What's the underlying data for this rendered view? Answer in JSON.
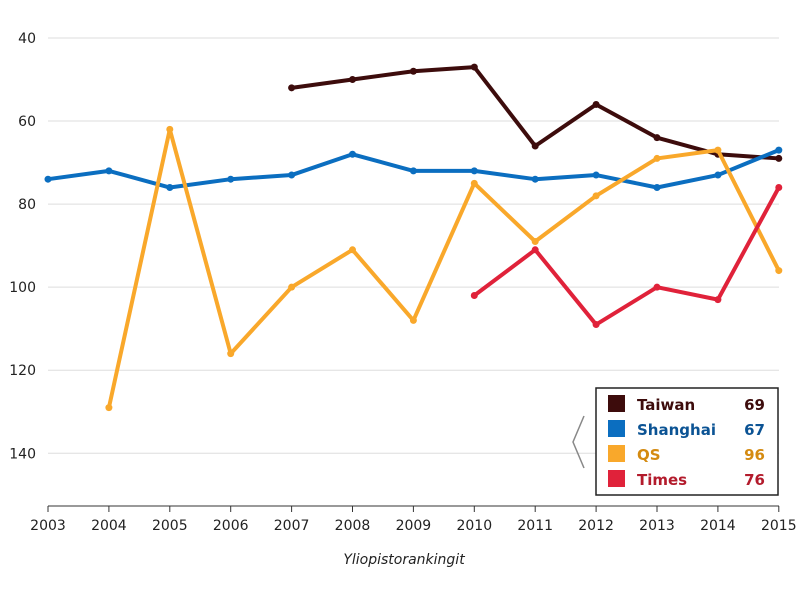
{
  "chart_data": {
    "type": "line",
    "title": "",
    "xlabel": "Yliopistorankingit",
    "ylabel": "",
    "x": [
      2003,
      2004,
      2005,
      2006,
      2007,
      2008,
      2009,
      2010,
      2011,
      2012,
      2013,
      2014,
      2015
    ],
    "x_tick_labels": [
      "2003",
      "2004",
      "2005",
      "2006",
      "2007",
      "2008",
      "2009",
      "2010",
      "2011",
      "2012",
      "2013",
      "2014",
      "2015"
    ],
    "ylim": [
      40,
      150
    ],
    "y_inverted": true,
    "y_ticks": [
      40,
      60,
      80,
      100,
      120,
      140
    ],
    "y_tick_labels": [
      "40",
      "60",
      "80",
      "100",
      "120",
      "140"
    ],
    "grid": "horizontal",
    "legend_position": "bottom-right",
    "series": [
      {
        "name": "Taiwan",
        "color": "#3d0c0c",
        "last_value": "69",
        "values": [
          null,
          null,
          null,
          null,
          52,
          50,
          48,
          47,
          66,
          56,
          64,
          68,
          69
        ]
      },
      {
        "name": "Shanghai",
        "color": "#0b6ec0",
        "last_value": "67",
        "values": [
          74,
          72,
          76,
          74,
          73,
          68,
          72,
          72,
          74,
          73,
          76,
          73,
          67
        ]
      },
      {
        "name": "QS",
        "color": "#f9a82b",
        "last_value": "96",
        "values": [
          null,
          129,
          62,
          116,
          100,
          91,
          108,
          75,
          89,
          78,
          69,
          67,
          96
        ]
      },
      {
        "name": "Times",
        "color": "#e0223a",
        "last_value": "76",
        "values": [
          null,
          null,
          null,
          null,
          null,
          null,
          null,
          102,
          91,
          109,
          100,
          103,
          76
        ]
      }
    ],
    "legend_text_colors": {
      "Taiwan": "#3d0c0c",
      "Shanghai": "#0b5394",
      "QS": "#d48a10",
      "Times": "#b31b2c"
    }
  }
}
